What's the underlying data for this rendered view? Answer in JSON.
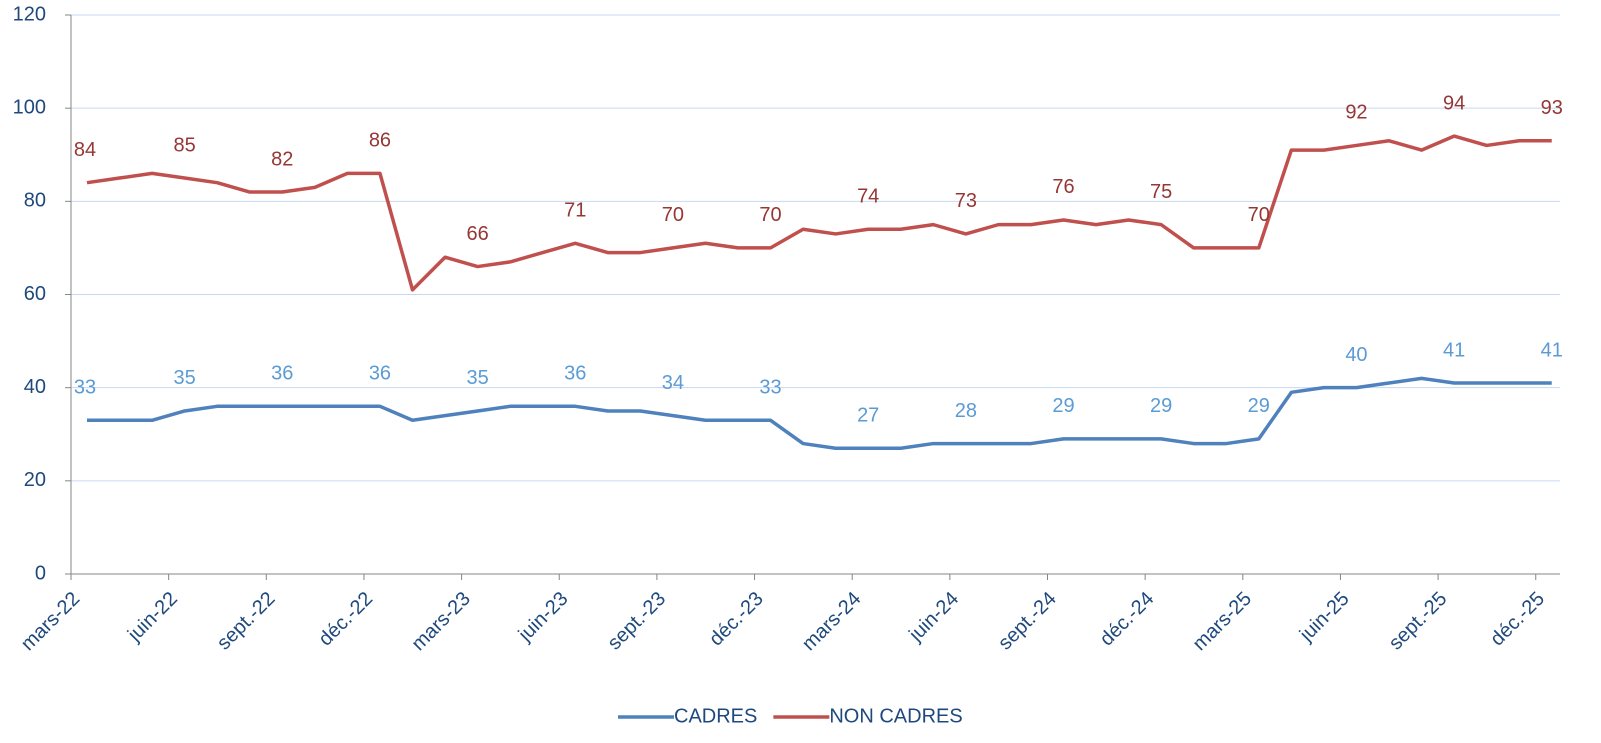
{
  "chart_data": {
    "type": "line",
    "categories": [
      "mars-22",
      null,
      null,
      "juin-22",
      null,
      null,
      "sept.-22",
      null,
      null,
      "déc.-22",
      null,
      null,
      "mars-23",
      null,
      null,
      "juin-23",
      null,
      null,
      "sept.-23",
      null,
      null,
      "déc.-23",
      null,
      null,
      "mars-24",
      null,
      null,
      "juin-24",
      null,
      null,
      "sept.-24",
      null,
      null,
      "déc.-24",
      null,
      null,
      "mars-25",
      null,
      null,
      "juin-25",
      null,
      null,
      "sept.-25",
      null,
      null,
      "déc.-25"
    ],
    "series": [
      {
        "name": "CADRES",
        "color": "#4f81bd",
        "label_color": "#5b9bd5",
        "values": [
          33,
          33,
          33,
          35,
          36,
          36,
          36,
          36,
          36,
          36,
          33,
          34,
          35,
          36,
          36,
          36,
          35,
          35,
          34,
          33,
          33,
          33,
          28,
          27,
          27,
          27,
          28,
          28,
          28,
          28,
          29,
          29,
          29,
          29,
          28,
          28,
          29,
          39,
          40,
          40,
          41,
          42,
          41,
          41,
          41,
          41
        ]
      },
      {
        "name": "NON CADRES",
        "color": "#c0504d",
        "label_color": "#953735",
        "values": [
          84,
          85,
          86,
          85,
          84,
          82,
          82,
          83,
          86,
          86,
          61,
          68,
          66,
          67,
          69,
          71,
          69,
          69,
          70,
          71,
          70,
          70,
          74,
          73,
          74,
          74,
          75,
          73,
          75,
          75,
          76,
          75,
          76,
          75,
          70,
          70,
          70,
          91,
          91,
          92,
          93,
          91,
          94,
          92,
          93,
          93
        ]
      }
    ],
    "ylim": [
      0,
      120
    ],
    "yticks": [
      0,
      20,
      40,
      60,
      80,
      100,
      120
    ],
    "grid": true,
    "legend": "bottom"
  }
}
